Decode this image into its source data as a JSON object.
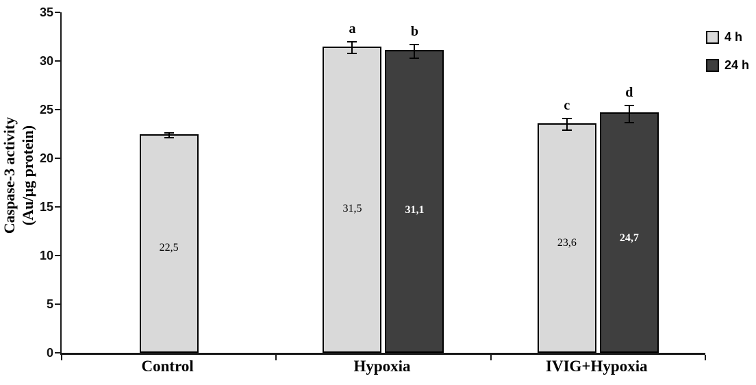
{
  "chart_data": {
    "type": "bar",
    "title": "",
    "ylabel": "Caspase-3 activity\n(Au/µg protein)",
    "xlabel": "",
    "ylim": [
      0,
      35
    ],
    "ytick_step": 5,
    "grid": false,
    "legend_position": "top-right",
    "categories": [
      "Control",
      "Hypoxia",
      "IVIG+Hypoxia"
    ],
    "series": [
      {
        "name": "4 h",
        "color": "#d9d9d9",
        "label_color": "#000000",
        "label_bold": false,
        "values": [
          22.5,
          31.5,
          23.6
        ],
        "value_labels": [
          "22,5",
          "31,5",
          "23,6"
        ],
        "errors": [
          0.25,
          0.6,
          0.6
        ],
        "letters": [
          "",
          "a",
          "c"
        ]
      },
      {
        "name": "24 h",
        "color": "#3f3f3f",
        "label_color": "#ffffff",
        "label_bold": true,
        "values": [
          null,
          31.1,
          24.7
        ],
        "value_labels": [
          "",
          "31,1",
          "24,7"
        ],
        "errors": [
          null,
          0.7,
          0.9
        ],
        "letters": [
          "",
          "b",
          "d"
        ]
      }
    ]
  }
}
